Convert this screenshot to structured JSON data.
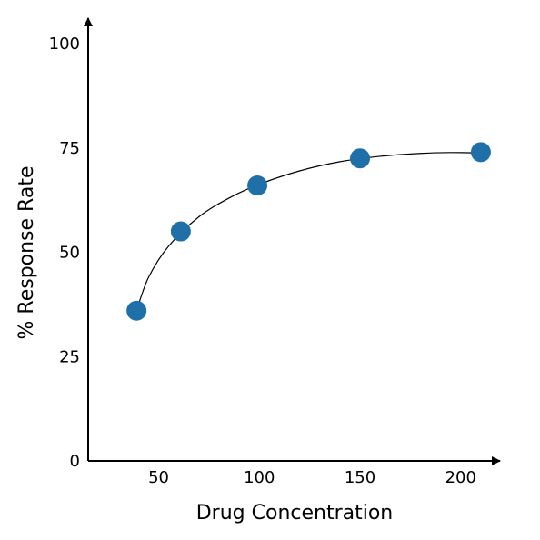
{
  "chart_data": {
    "type": "scatter",
    "title": "",
    "xlabel": "Drug Concentration",
    "ylabel": "% Response Rate",
    "xlim": [
      15,
      215
    ],
    "ylim": [
      0,
      100
    ],
    "x_ticks": [
      50,
      100,
      150,
      200
    ],
    "y_ticks": [
      0,
      25,
      50,
      75,
      100
    ],
    "grid": false,
    "legend": "none",
    "point_color": "#1f6fa8",
    "curve_color": "#000000",
    "axis_color": "#000000",
    "points": [
      {
        "x": 39,
        "y": 36
      },
      {
        "x": 61,
        "y": 55
      },
      {
        "x": 99,
        "y": 66
      },
      {
        "x": 150,
        "y": 72.5
      },
      {
        "x": 210,
        "y": 74
      }
    ],
    "fit_curve": [
      {
        "x": 39,
        "y": 36
      },
      {
        "x": 45,
        "y": 44
      },
      {
        "x": 55,
        "y": 51.5
      },
      {
        "x": 70,
        "y": 58.5
      },
      {
        "x": 85,
        "y": 63
      },
      {
        "x": 100,
        "y": 66.3
      },
      {
        "x": 120,
        "y": 69.5
      },
      {
        "x": 140,
        "y": 71.7
      },
      {
        "x": 160,
        "y": 73
      },
      {
        "x": 180,
        "y": 73.7
      },
      {
        "x": 195,
        "y": 73.9
      },
      {
        "x": 210,
        "y": 73.8
      }
    ]
  }
}
